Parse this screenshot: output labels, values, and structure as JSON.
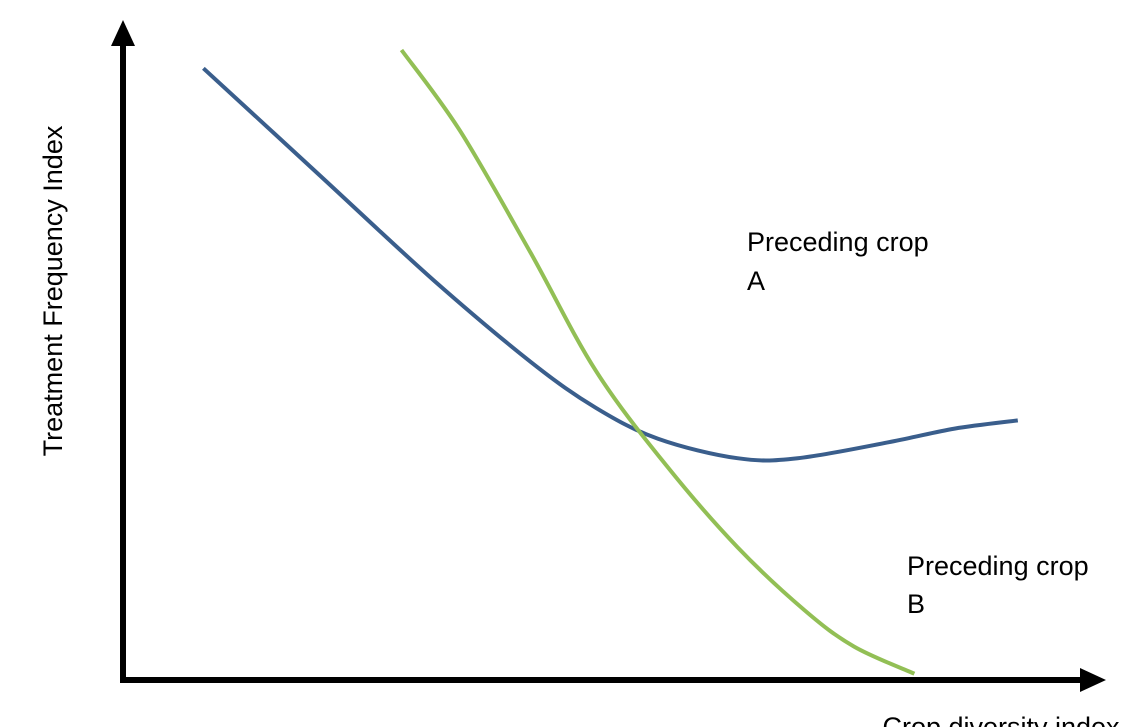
{
  "chart_data": {
    "type": "line",
    "title": "",
    "xlabel": "Crop diversity index",
    "ylabel": "Treatment Frequency Index",
    "xlim": [
      0,
      100
    ],
    "ylim": [
      0,
      100
    ],
    "grid": false,
    "ticks": false,
    "colors": {
      "axis": "#000000",
      "series_a": "#3a5e8c",
      "series_b": "#92bf55"
    },
    "series": [
      {
        "name": "Preceding crop A",
        "color": "#3a5e8c",
        "x": [
          8.4,
          20.7,
          32.5,
          42.6,
          49.4,
          55.9,
          64.2,
          70.5,
          80.2,
          86.9,
          93.5
        ],
        "y": [
          97.1,
          79.9,
          63.4,
          50.5,
          43.2,
          38.3,
          35.2,
          35.2,
          37.8,
          39.9,
          41.2
        ]
      },
      {
        "name": "Preceding crop B",
        "color": "#92bf55",
        "x": [
          29.1,
          35.2,
          42.6,
          49.4,
          56.8,
          64.2,
          71.2,
          76.4,
          82.7
        ],
        "y": [
          100.0,
          87.2,
          67.8,
          49.1,
          34.0,
          21.1,
          11.1,
          5.3,
          1.0
        ]
      }
    ],
    "annotations": [
      {
        "label": "Preceding crop A",
        "line1": "Preceding crop",
        "line2": "A",
        "x": 63.6,
        "y": 66.4
      },
      {
        "label": "Preceding crop B",
        "line1": "Preceding crop",
        "line2": "B",
        "x": 81.5,
        "y": 16.7
      }
    ]
  }
}
